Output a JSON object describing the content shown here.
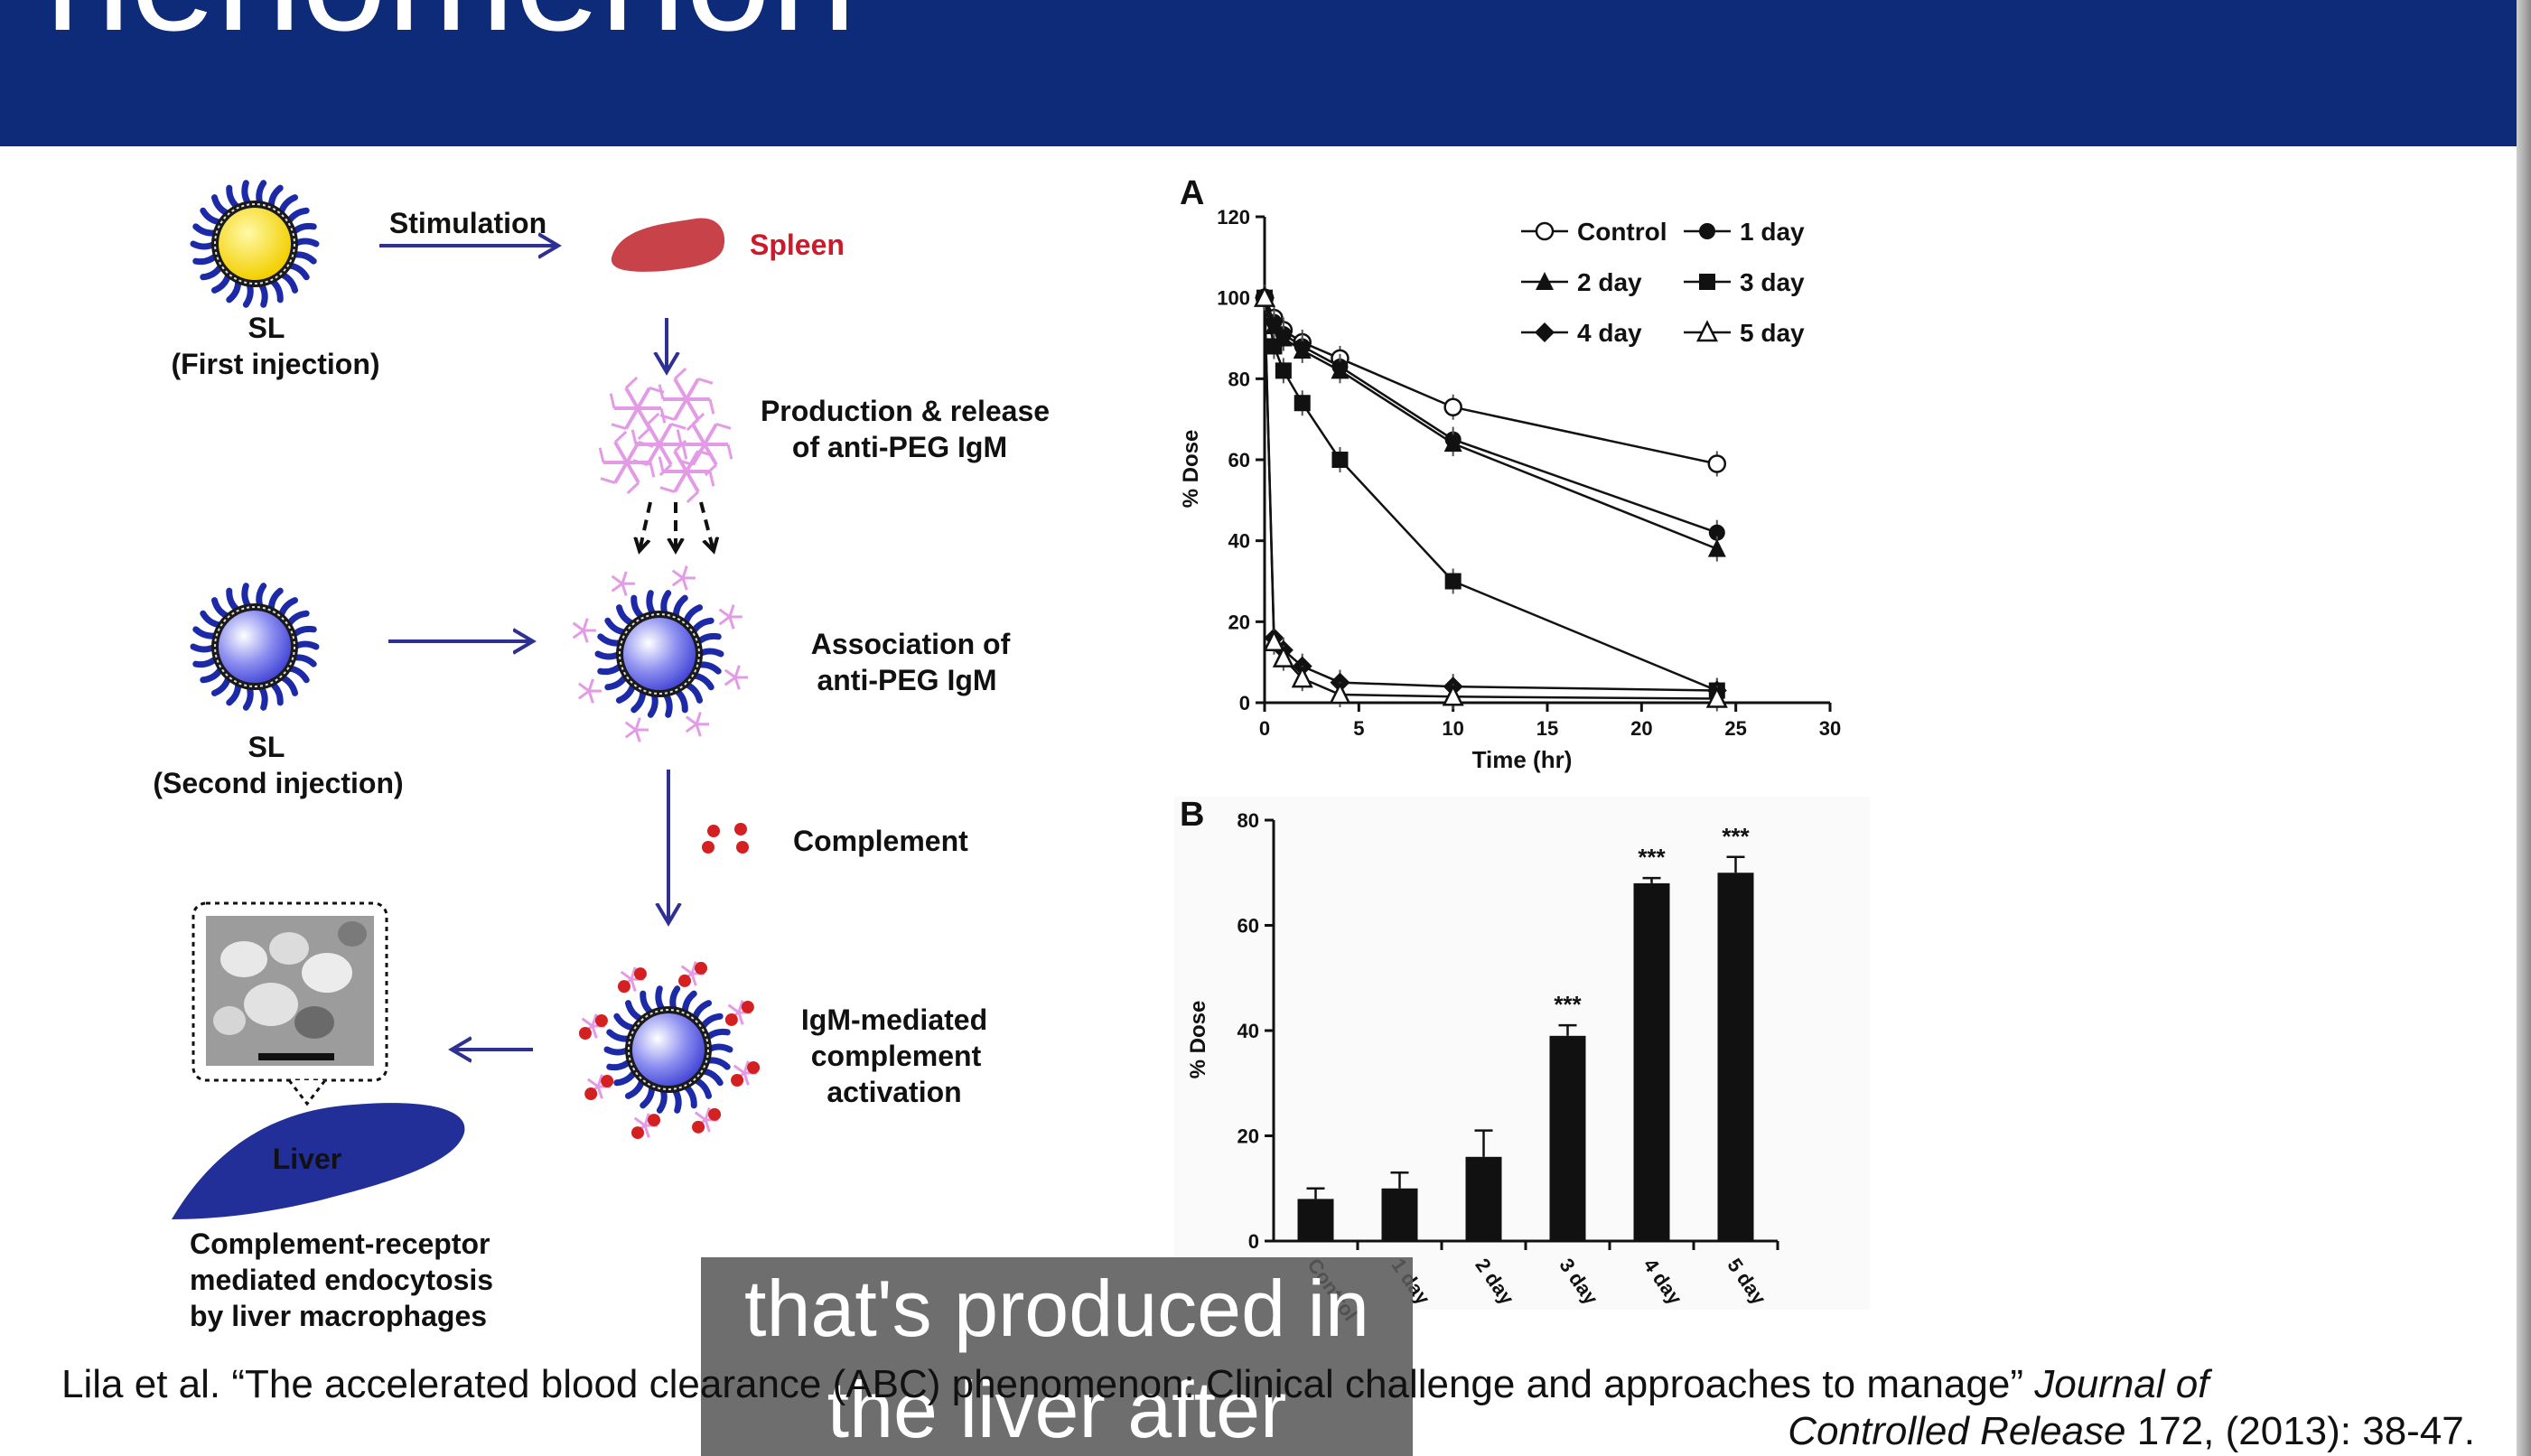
{
  "header": {
    "title": "henomenon"
  },
  "diagram": {
    "stimulation": "Stimulation",
    "spleen": "Spleen",
    "sl1": "SL",
    "sl1_sub": "(First injection)",
    "production_line1": "Production & release",
    "production_line2": "of anti-PEG IgM",
    "sl2": "SL",
    "sl2_sub": "(Second injection)",
    "association_line1": "Association of",
    "association_line2": "anti-PEG IgM",
    "complement": "Complement",
    "igm_line1": "IgM-mediated",
    "igm_line2": "complement",
    "igm_line3": "activation",
    "liver": "Liver",
    "endo_line1": "Complement-receptor",
    "endo_line2": "mediated endocytosis",
    "endo_line3": "by liver macrophages"
  },
  "chart_data": [
    {
      "type": "line",
      "panel": "A",
      "xlabel": "Time (hr)",
      "ylabel": "% Dose",
      "xlim": [
        0,
        30
      ],
      "ylim": [
        0,
        120
      ],
      "xticks": [
        0,
        5,
        10,
        15,
        20,
        25,
        30
      ],
      "yticks": [
        0,
        20,
        40,
        60,
        80,
        100,
        120
      ],
      "legend": "top-right",
      "series": [
        {
          "name": "Control",
          "marker": "circle-open",
          "x": [
            0,
            0.5,
            1,
            2,
            4,
            10,
            24
          ],
          "y": [
            100,
            95,
            92,
            89,
            85,
            73,
            59
          ]
        },
        {
          "name": "1 day",
          "marker": "circle-filled",
          "x": [
            0,
            0.5,
            1,
            2,
            4,
            10,
            24
          ],
          "y": [
            100,
            94,
            91,
            88,
            83,
            65,
            42
          ]
        },
        {
          "name": "2 day",
          "marker": "triangle-filled",
          "x": [
            0,
            0.5,
            1,
            2,
            4,
            10,
            24
          ],
          "y": [
            100,
            93,
            90,
            87,
            82,
            64,
            38
          ]
        },
        {
          "name": "3 day",
          "marker": "square-filled",
          "x": [
            0,
            0.5,
            1,
            2,
            4,
            10,
            24
          ],
          "y": [
            100,
            88,
            82,
            74,
            60,
            30,
            3
          ]
        },
        {
          "name": "4 day",
          "marker": "diamond-filled",
          "x": [
            0,
            0.5,
            1,
            2,
            4,
            10,
            24
          ],
          "y": [
            100,
            16,
            13,
            9,
            5,
            4,
            3
          ]
        },
        {
          "name": "5 day",
          "marker": "triangle-open",
          "x": [
            0,
            0.5,
            1,
            2,
            4,
            10,
            24
          ],
          "y": [
            100,
            15,
            11,
            6,
            2,
            1.5,
            1
          ]
        }
      ]
    },
    {
      "type": "bar",
      "panel": "B",
      "ylabel": "% Dose",
      "ylim": [
        0,
        80
      ],
      "yticks": [
        0,
        20,
        40,
        60,
        80
      ],
      "categories": [
        "Control",
        "1 day",
        "2 day",
        "3 day",
        "4 day",
        "5 day"
      ],
      "values": [
        8,
        10,
        16,
        39,
        68,
        70
      ],
      "errors": [
        2,
        3,
        5,
        2,
        1,
        3
      ],
      "annotations": [
        "",
        "",
        "",
        "***",
        "***",
        "***"
      ]
    }
  ],
  "caption": {
    "line1": "that's produced in",
    "line2": "the liver after"
  },
  "citation": {
    "line1_text": "Lila et al. “The accelerated blood clearance (ABC) phenomenon: Clinical challenge and approaches to manage”",
    "line1_italic": "Journal of",
    "line2_italic": "Controlled Release",
    "line2_text": "172, (2013): 38-47."
  },
  "colors": {
    "header": "#0e2b7a",
    "arrow": "#2e3192",
    "spleen": "#c8424a",
    "spleen_label": "#cc1a2a",
    "igm": "#e49be6",
    "liposome": "#2f3aa8",
    "liver": "#232f99",
    "complement": "#d42020"
  }
}
